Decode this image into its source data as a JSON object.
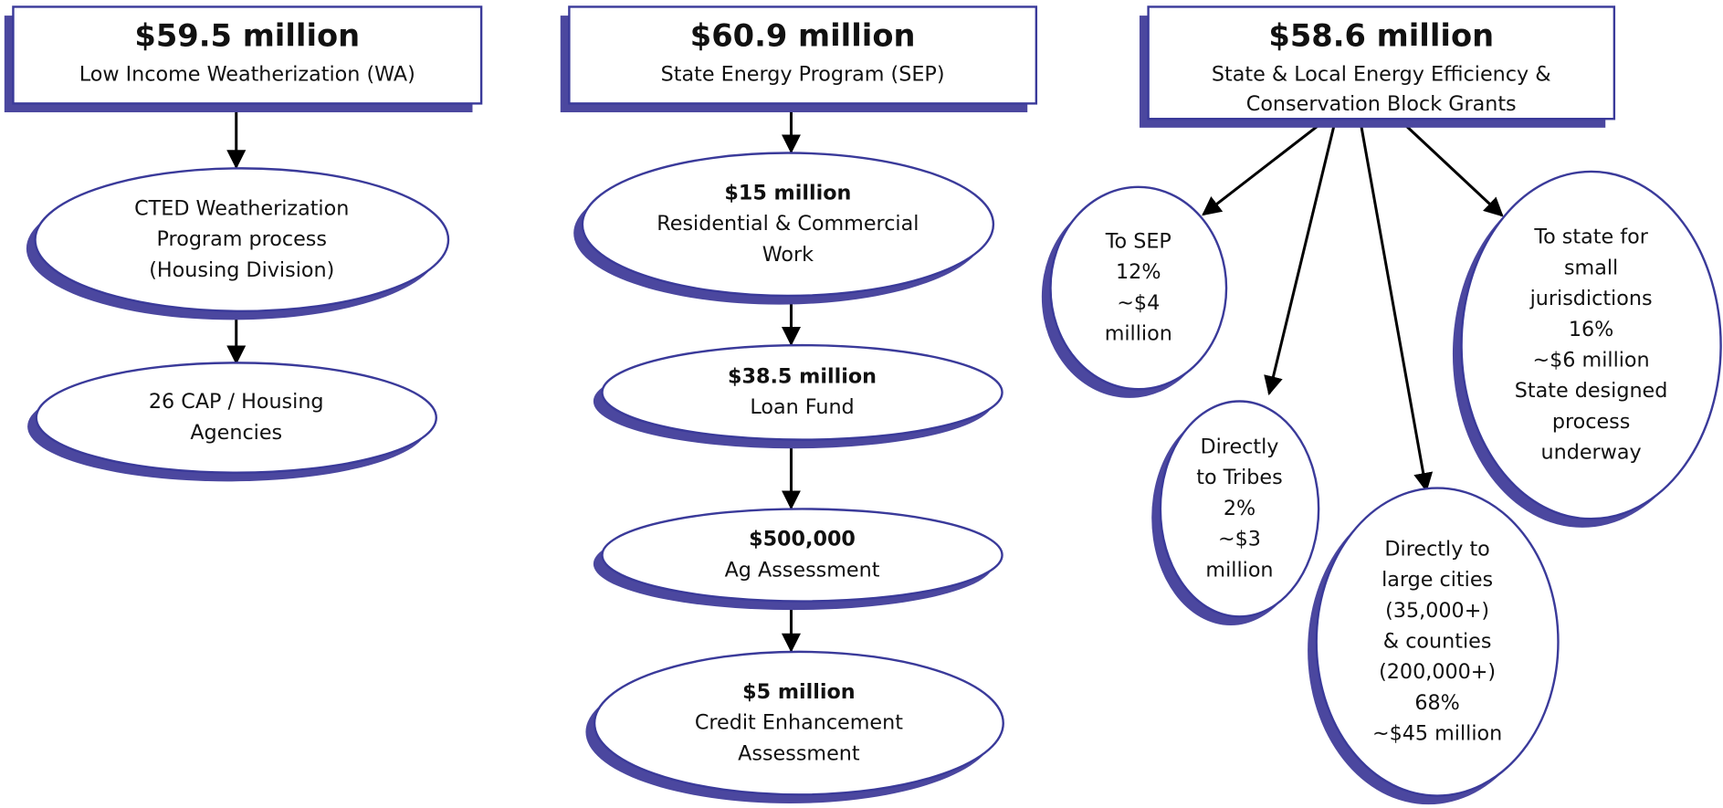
{
  "columns": [
    {
      "amount": "$59.5 million",
      "label": [
        "Low Income Weatherization (WA)"
      ],
      "nodes": [
        {
          "lines": [
            "CTED Weatherization",
            "Program process",
            "(Housing Division)"
          ]
        },
        {
          "lines": [
            "26 CAP / Housing",
            "Agencies"
          ]
        }
      ]
    },
    {
      "amount": "$60.9 million",
      "label": [
        "State Energy Program (SEP)"
      ],
      "nodes": [
        {
          "amount": "$15 million",
          "lines": [
            "Residential & Commercial",
            "Work"
          ]
        },
        {
          "amount": "$38.5 million",
          "lines": [
            "Loan Fund"
          ]
        },
        {
          "amount": "$500,000",
          "lines": [
            "Ag Assessment"
          ]
        },
        {
          "amount": "$5 million",
          "lines": [
            "Credit Enhancement",
            "Assessment"
          ]
        }
      ]
    },
    {
      "amount": "$58.6 million",
      "label": [
        "State & Local Energy Efficiency &",
        "Conservation Block Grants"
      ],
      "nodes": [
        {
          "lines": [
            "To SEP",
            "12%",
            "~$4",
            "million"
          ]
        },
        {
          "lines": [
            "Directly",
            "to Tribes",
            "2%",
            "~$3",
            "million"
          ]
        },
        {
          "lines": [
            "Directly to",
            "large cities",
            "(35,000+)",
            "& counties",
            "(200,000+)",
            "68%",
            "~$45 million"
          ]
        },
        {
          "lines": [
            "To state for",
            "small",
            "jurisdictions",
            "16%",
            "~$6 million",
            "State designed",
            "process",
            "underway"
          ]
        }
      ]
    }
  ]
}
